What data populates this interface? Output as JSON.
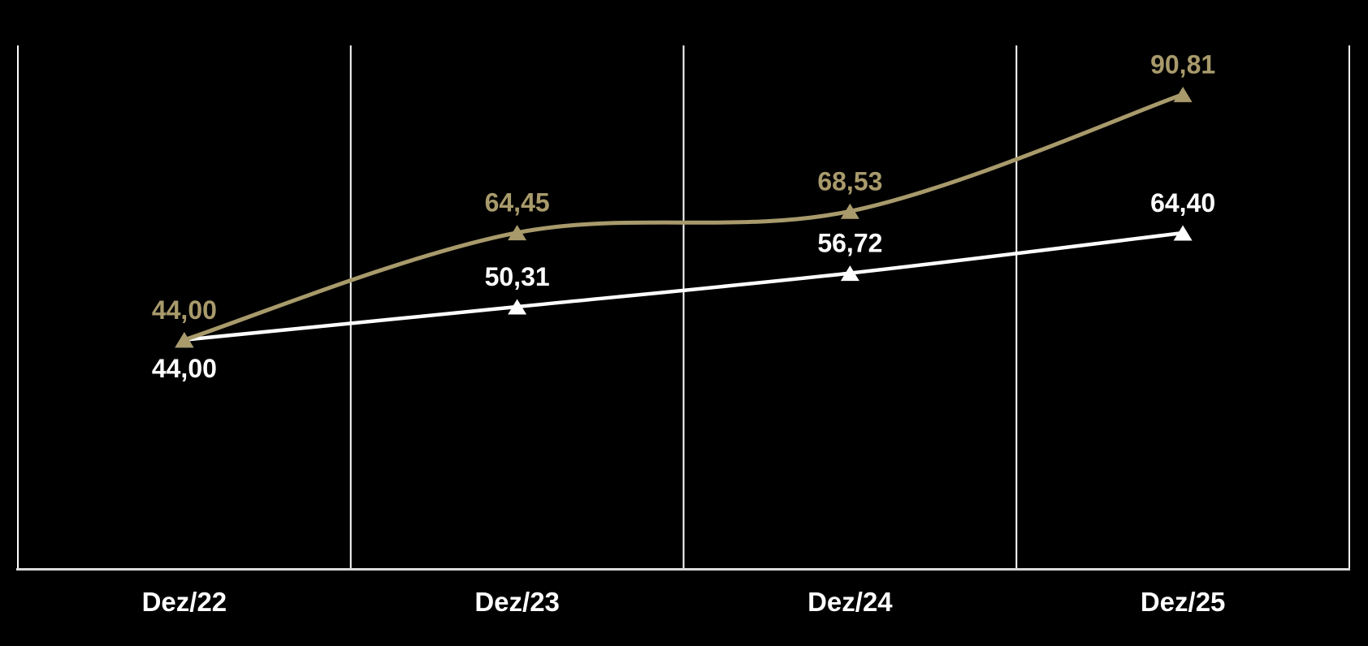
{
  "page": {
    "background": "#000000"
  },
  "chart_data": {
    "type": "line",
    "title": "",
    "categories": [
      "Dez/22",
      "Dez/23",
      "Dez/24",
      "Dez/25"
    ],
    "series": [
      {
        "id": "white-series",
        "color": "#FFFFFF",
        "values": [
          44.0,
          50.31,
          56.72,
          64.4
        ],
        "value_labels": [
          "44,00",
          "50,31",
          "56,72",
          "64,40"
        ],
        "label_placement": [
          "below",
          "above",
          "above",
          "above"
        ],
        "marker": "triangle-up",
        "line_width": 4.5
      },
      {
        "id": "gold-series",
        "color": "#A89A6B",
        "values": [
          44.0,
          64.45,
          68.53,
          90.81
        ],
        "value_labels": [
          "44,00",
          "64,45",
          "68,53",
          "90,81"
        ],
        "label_placement": [
          "above",
          "above",
          "above",
          "above"
        ],
        "marker": "triangle-up",
        "line_width": 5
      }
    ],
    "ylim": [
      0,
      100
    ],
    "grid": "vertical",
    "smoothing": "spline",
    "legend": "none",
    "axis_colors": {
      "vertical_gridline": "#FFFFFF",
      "x_axis_line": "#D9D9D9",
      "x_tick_label": "#FFFFFF"
    }
  }
}
